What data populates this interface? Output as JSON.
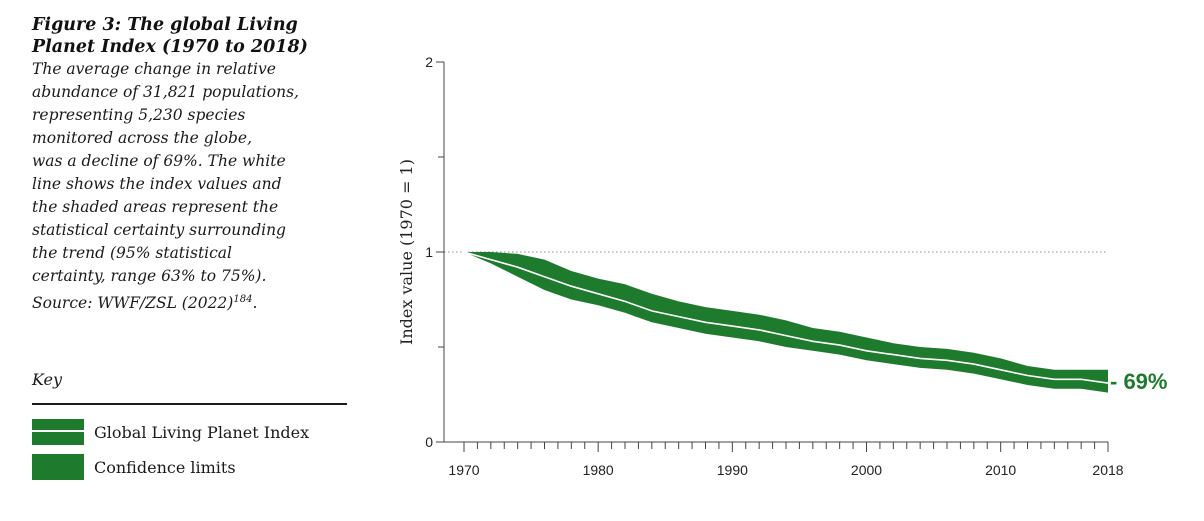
{
  "caption": {
    "title_line1": "Figure 3: The global Living",
    "title_line2": "Planet Index (1970 to 2018)",
    "body_lines": [
      "The average change in relative",
      "abundance of 31,821 populations,",
      "representing 5,230 species",
      "monitored across the globe,",
      "was a decline of 69%. The white",
      "line shows the index values and",
      "the shaded areas represent the",
      "statistical certainty surrounding",
      "the trend (95% statistical",
      "certainty, range 63% to 75%)."
    ],
    "source_text": "Source: WWF/ZSL (2022)",
    "source_ref": "184",
    "source_end": "."
  },
  "key": {
    "heading": "Key",
    "items": [
      {
        "label": "Global Living Planet Index",
        "swatch": "line"
      },
      {
        "label": "Confidence limits",
        "swatch": "band"
      }
    ]
  },
  "colors": {
    "band": "#1e7b2e",
    "index_line": "#ffffff",
    "reference_line": "#888888",
    "axis": "#444444"
  },
  "chart_data": {
    "type": "area",
    "ylabel": "Index value (1970 = 1)",
    "xlim": [
      1970,
      2018
    ],
    "ylim": [
      0,
      2
    ],
    "x_major_ticks": [
      1970,
      1980,
      1990,
      2000,
      2010,
      2018
    ],
    "y_ticks": [
      0,
      1,
      2
    ],
    "y_minor_ticks": [
      0.5,
      1.5
    ],
    "reference_line": 1,
    "end_label": "- 69%",
    "x": [
      1970,
      1972,
      1974,
      1976,
      1978,
      1980,
      1982,
      1984,
      1986,
      1988,
      1990,
      1992,
      1994,
      1996,
      1998,
      2000,
      2002,
      2004,
      2006,
      2008,
      2010,
      2012,
      2014,
      2016,
      2018
    ],
    "series": [
      {
        "role": "index",
        "values": [
          1.0,
          0.96,
          0.92,
          0.87,
          0.82,
          0.78,
          0.74,
          0.69,
          0.66,
          0.63,
          0.61,
          0.59,
          0.56,
          0.53,
          0.51,
          0.48,
          0.46,
          0.44,
          0.43,
          0.41,
          0.38,
          0.35,
          0.33,
          0.33,
          0.31
        ]
      },
      {
        "role": "upper",
        "values": [
          1.0,
          1.0,
          0.99,
          0.96,
          0.9,
          0.86,
          0.83,
          0.78,
          0.74,
          0.71,
          0.69,
          0.67,
          0.64,
          0.6,
          0.58,
          0.55,
          0.52,
          0.5,
          0.49,
          0.47,
          0.44,
          0.4,
          0.38,
          0.38,
          0.38
        ]
      },
      {
        "role": "lower",
        "values": [
          1.0,
          0.94,
          0.87,
          0.8,
          0.75,
          0.72,
          0.68,
          0.63,
          0.6,
          0.57,
          0.55,
          0.53,
          0.5,
          0.48,
          0.46,
          0.43,
          0.41,
          0.39,
          0.38,
          0.36,
          0.33,
          0.3,
          0.28,
          0.28,
          0.26
        ]
      }
    ]
  }
}
